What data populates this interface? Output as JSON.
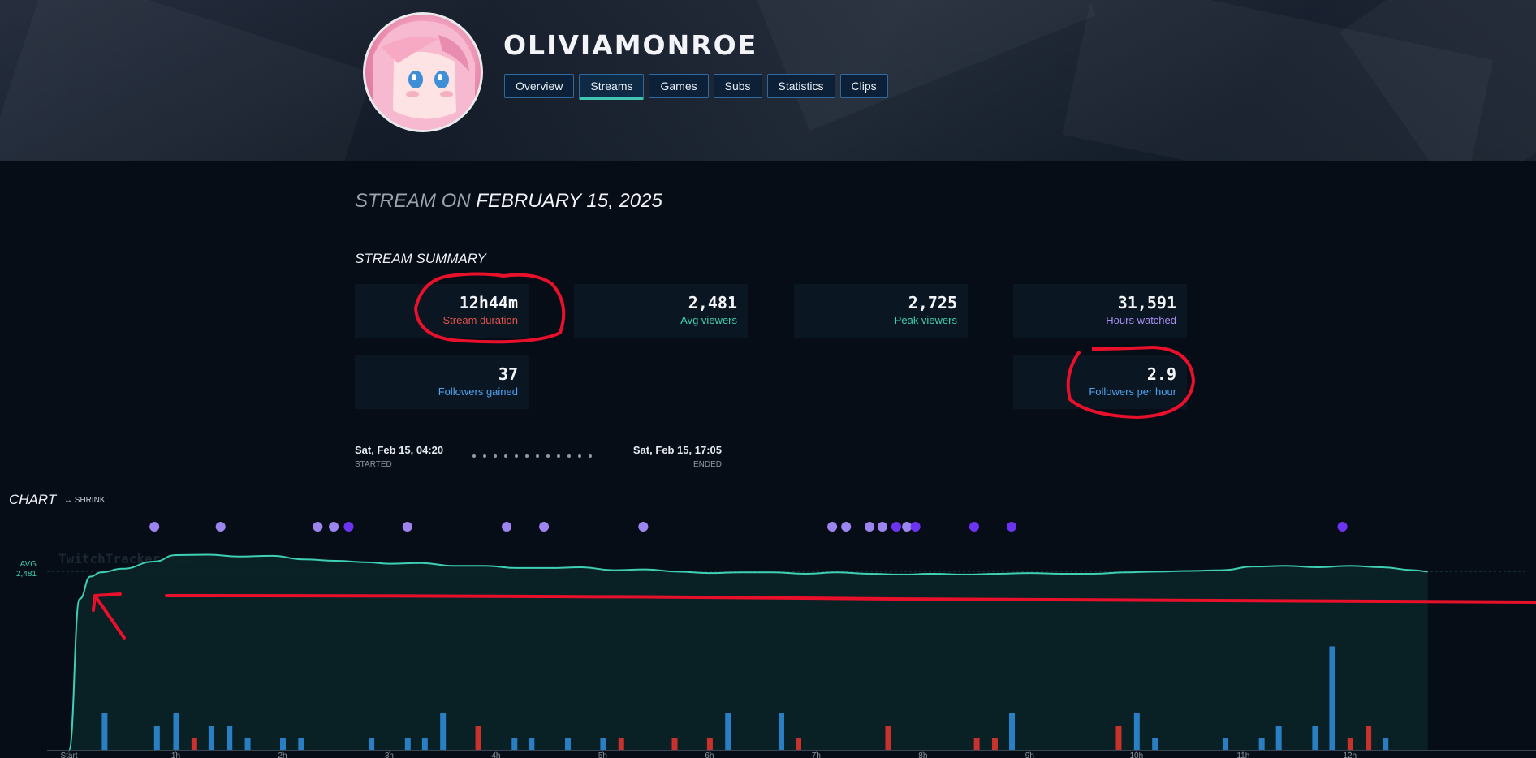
{
  "channel": {
    "name": "OLIVIAMONROE"
  },
  "tabs": [
    {
      "label": "Overview"
    },
    {
      "label": "Streams"
    },
    {
      "label": "Games"
    },
    {
      "label": "Subs"
    },
    {
      "label": "Statistics"
    },
    {
      "label": "Clips"
    }
  ],
  "active_tab": "Streams",
  "stream": {
    "prefix": "STREAM ON",
    "date": "FEBRUARY 15, 2025"
  },
  "summary": {
    "title": "STREAM SUMMARY",
    "cards": [
      {
        "value": "12h44m",
        "label": "Stream duration",
        "color": "#e5534b"
      },
      {
        "value": "2,481",
        "label": "Avg viewers",
        "color": "#3fcfb4"
      },
      {
        "value": "2,725",
        "label": "Peak viewers",
        "color": "#3fcfb4"
      },
      {
        "value": "31,591",
        "label": "Hours watched",
        "color": "#a98ff0"
      },
      {
        "value": "37",
        "label": "Followers gained",
        "color": "#4fa3f0"
      },
      {
        "value": "2.9",
        "label": "Followers per hour",
        "color": "#4fa3f0"
      }
    ]
  },
  "timeline": {
    "start": "Sat, Feb 15, 04:20",
    "start_label": "STARTED",
    "end": "Sat, Feb 15, 17:05",
    "end_label": "ENDED"
  },
  "chart_section": {
    "title": "CHART",
    "shrink": "↔ SHRINK",
    "avg_label": "AVG",
    "avg_value": "2,481",
    "watermark": "TwitchTracker.com"
  },
  "chart_data": {
    "type": "line",
    "x_ticks": [
      "Start",
      "1h",
      "2h",
      "3h",
      "4h",
      "5h",
      "6h",
      "7h",
      "8h",
      "9h",
      "10h",
      "11h",
      "12h"
    ],
    "duration_hours": 12.73,
    "viewers": {
      "name": "Viewers",
      "x": [
        0.0,
        0.1,
        0.2,
        0.3,
        0.5,
        0.8,
        1.0,
        1.3,
        1.6,
        1.9,
        2.2,
        2.5,
        2.8,
        3.0,
        3.3,
        3.6,
        3.9,
        4.2,
        4.5,
        4.8,
        5.1,
        5.4,
        5.7,
        6.0,
        6.3,
        6.6,
        6.9,
        7.2,
        7.5,
        7.8,
        8.1,
        8.4,
        8.7,
        9.0,
        9.3,
        9.6,
        9.9,
        10.2,
        10.5,
        10.8,
        11.1,
        11.4,
        11.7,
        12.0,
        12.3,
        12.6,
        12.73
      ],
      "y": [
        0,
        2100,
        2410,
        2470,
        2520,
        2620,
        2710,
        2715,
        2690,
        2700,
        2650,
        2630,
        2610,
        2590,
        2600,
        2560,
        2560,
        2530,
        2530,
        2540,
        2500,
        2510,
        2480,
        2460,
        2470,
        2470,
        2450,
        2470,
        2450,
        2440,
        2450,
        2440,
        2450,
        2460,
        2450,
        2450,
        2470,
        2480,
        2490,
        2500,
        2550,
        2560,
        2540,
        2560,
        2540,
        2500,
        2480
      ]
    },
    "avg": 2481,
    "y_max": 2800,
    "bars_blue": [
      {
        "h": 0.33,
        "v": 0.3
      },
      {
        "h": 0.82,
        "v": 0.2
      },
      {
        "h": 1.0,
        "v": 0.3
      },
      {
        "h": 1.33,
        "v": 0.2
      },
      {
        "h": 1.5,
        "v": 0.2
      },
      {
        "h": 1.67,
        "v": 0.1
      },
      {
        "h": 2.0,
        "v": 0.1
      },
      {
        "h": 2.17,
        "v": 0.1
      },
      {
        "h": 2.83,
        "v": 0.1
      },
      {
        "h": 3.17,
        "v": 0.1
      },
      {
        "h": 3.33,
        "v": 0.1
      },
      {
        "h": 3.5,
        "v": 0.3
      },
      {
        "h": 4.17,
        "v": 0.1
      },
      {
        "h": 4.33,
        "v": 0.1
      },
      {
        "h": 4.67,
        "v": 0.1
      },
      {
        "h": 5.0,
        "v": 0.1
      },
      {
        "h": 6.17,
        "v": 0.3
      },
      {
        "h": 6.67,
        "v": 0.3
      },
      {
        "h": 8.83,
        "v": 0.3
      },
      {
        "h": 10.0,
        "v": 0.3
      },
      {
        "h": 10.17,
        "v": 0.1
      },
      {
        "h": 10.83,
        "v": 0.1
      },
      {
        "h": 11.17,
        "v": 0.1
      },
      {
        "h": 11.33,
        "v": 0.2
      },
      {
        "h": 11.67,
        "v": 0.2
      },
      {
        "h": 11.83,
        "v": 0.85
      },
      {
        "h": 12.33,
        "v": 0.1
      }
    ],
    "bars_red": [
      {
        "h": 1.17,
        "v": 0.1
      },
      {
        "h": 3.83,
        "v": 0.2
      },
      {
        "h": 5.17,
        "v": 0.1
      },
      {
        "h": 5.67,
        "v": 0.1
      },
      {
        "h": 6.0,
        "v": 0.1
      },
      {
        "h": 6.83,
        "v": 0.1
      },
      {
        "h": 7.67,
        "v": 0.2
      },
      {
        "h": 8.5,
        "v": 0.1
      },
      {
        "h": 8.67,
        "v": 0.1
      },
      {
        "h": 9.83,
        "v": 0.2
      },
      {
        "h": 12.0,
        "v": 0.1
      },
      {
        "h": 12.17,
        "v": 0.2
      }
    ],
    "markers_light": [
      0.8,
      1.42,
      2.33,
      2.48,
      3.17,
      4.1,
      4.45,
      5.38,
      7.15,
      7.28,
      7.5,
      7.62,
      7.85
    ],
    "markers_dark": [
      2.62,
      7.75,
      7.93,
      8.48,
      8.83,
      11.93
    ]
  },
  "colors": {
    "accent": "#3fcfb4",
    "tab_border": "#2f6aa1",
    "annotation": "#e8102a"
  }
}
